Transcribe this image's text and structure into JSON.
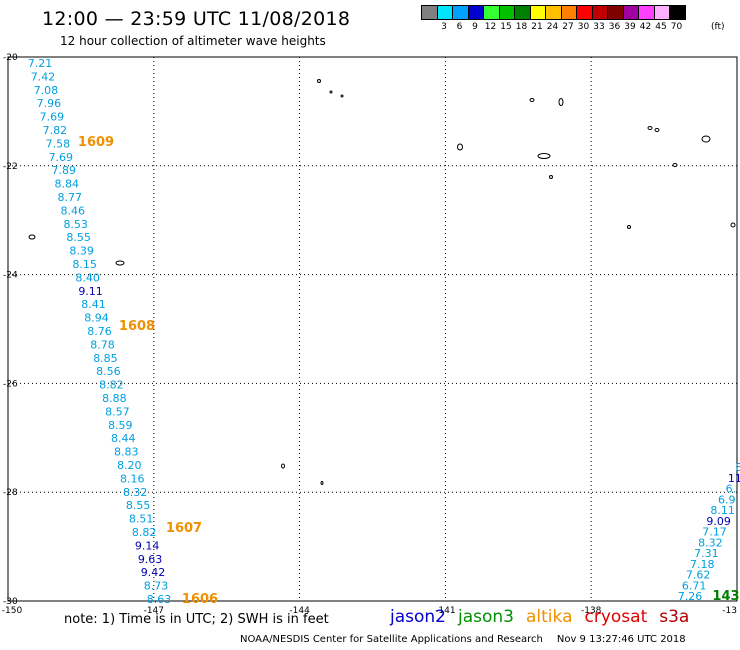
{
  "title": "12:00 — 23:59 UTC 11/08/2018",
  "subtitle": "12 hour collection of altimeter wave heights",
  "legend": {
    "unit": "(ft)",
    "items": [
      {
        "label": "3",
        "color": "#808080"
      },
      {
        "label": "6",
        "color": "#00e5ff"
      },
      {
        "label": "9",
        "color": "#00a0ff"
      },
      {
        "label": "12",
        "color": "#0000d0"
      },
      {
        "label": "15",
        "color": "#33ff33"
      },
      {
        "label": "18",
        "color": "#00c000"
      },
      {
        "label": "21",
        "color": "#008000"
      },
      {
        "label": "24",
        "color": "#ffff00"
      },
      {
        "label": "27",
        "color": "#ffc000"
      },
      {
        "label": "30",
        "color": "#ff8000"
      },
      {
        "label": "33",
        "color": "#ff0000"
      },
      {
        "label": "36",
        "color": "#c00000"
      },
      {
        "label": "39",
        "color": "#800000"
      },
      {
        "label": "42",
        "color": "#a000a0"
      },
      {
        "label": "45",
        "color": "#ff40ff"
      },
      {
        "label": "70",
        "color": "#ffb0ff"
      },
      {
        "label": "",
        "color": "#000000"
      }
    ]
  },
  "map": {
    "lon_labels": [
      {
        "lon": -150,
        "label": "-150"
      },
      {
        "lon": -147,
        "label": "-147"
      },
      {
        "lon": -144,
        "label": "-144"
      },
      {
        "lon": -141,
        "label": "-141"
      },
      {
        "lon": -138,
        "label": "-138"
      },
      {
        "lon": -135,
        "label": "-13"
      }
    ],
    "lat_labels": [
      {
        "lat": -20,
        "label": "-20"
      },
      {
        "lat": -22,
        "label": "-22"
      },
      {
        "lat": -24,
        "label": "-24"
      },
      {
        "lat": -26,
        "label": "-26"
      },
      {
        "lat": -28,
        "label": "-28"
      },
      {
        "lat": -30,
        "label": "-30"
      }
    ],
    "grid_lon": [
      -147,
      -144,
      -141,
      -138
    ],
    "grid_lat": [
      -22,
      -24,
      -26,
      -28
    ]
  },
  "track_left": {
    "color": "#00a0e0",
    "values": [
      "7.21",
      "7.42",
      "7.08",
      "7.96",
      "7.69",
      "7.82",
      "7.58",
      "7.69",
      "7.89",
      "8.84",
      "8.77",
      "8.46",
      "8.53",
      "8.55",
      "8.39",
      "8.15",
      "8.40",
      "9.11",
      "8.41",
      "8.94",
      "8.76",
      "8.78",
      "8.85",
      "8.56",
      "8.82",
      "8.88",
      "8.57",
      "8.59",
      "8.44",
      "8.83",
      "8.20",
      "8.16",
      "8.32",
      "8.55",
      "8.51",
      "8.82",
      "9.14",
      "9.63",
      "9.42",
      "8.73",
      "8.63"
    ],
    "dark_values": [
      "9.11",
      "9.14",
      "9.63",
      "9.42"
    ],
    "dark_color": "#0000b0"
  },
  "track_right": {
    "color": "#00a0e0",
    "values": [
      "8",
      "11",
      "6.",
      "6.9",
      "8.11",
      "9.09",
      "7.17",
      "8.32",
      "7.31",
      "7.18",
      "7.62",
      "6.71",
      "7.26"
    ],
    "dark_values": [
      "11",
      "9.09"
    ],
    "dark_color": "#0000b0"
  },
  "time_labels": [
    {
      "label": "1609",
      "color": "#f09000"
    },
    {
      "label": "1608",
      "color": "#f09000"
    },
    {
      "label": "1607",
      "color": "#f09000"
    },
    {
      "label": "1606",
      "color": "#f09000"
    },
    {
      "label": "143",
      "color": "#008000"
    }
  ],
  "footnote": "note: 1) Time is in UTC; 2) SWH is in feet",
  "satellites": [
    {
      "name": "jason2",
      "color": "#0000d0"
    },
    {
      "name": "jason3",
      "color": "#009000"
    },
    {
      "name": "altika",
      "color": "#f09000"
    },
    {
      "name": "cryosat",
      "color": "#e00000"
    },
    {
      "name": "s3a",
      "color": "#b00000"
    }
  ],
  "credit": "NOAA/NESDIS Center for Satellite Applications and Research",
  "credit_time": "Nov  9 13:27:46 UTC 2018"
}
